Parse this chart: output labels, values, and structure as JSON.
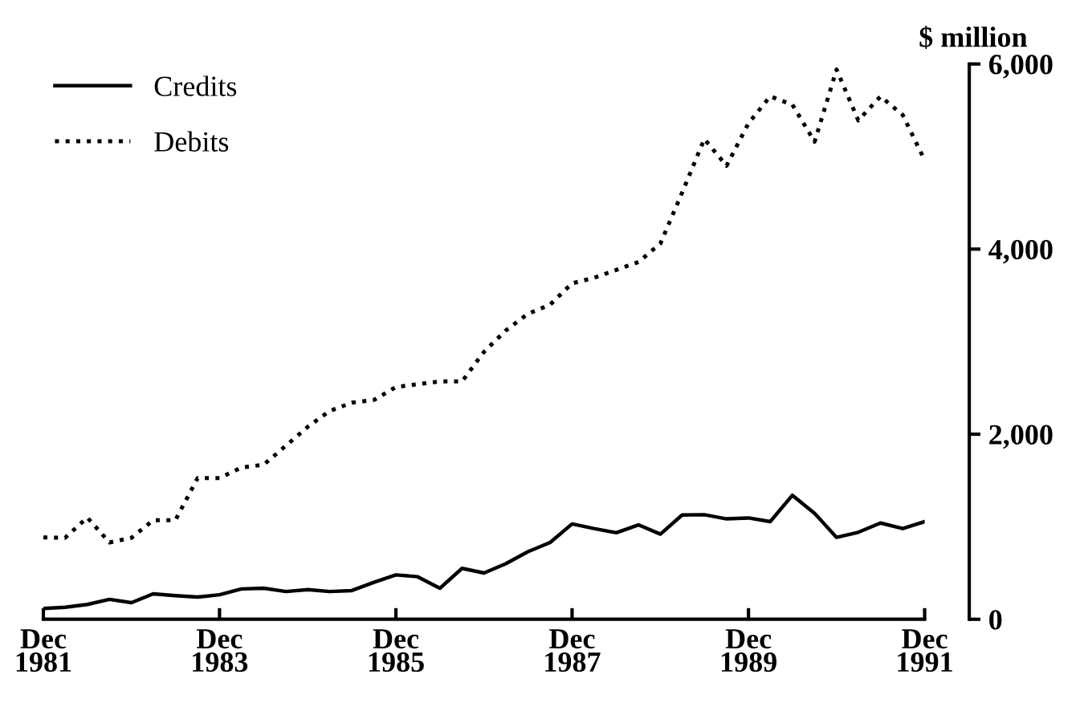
{
  "chart_data": {
    "type": "line",
    "ylabel": "$ million",
    "x": [
      "1981-12",
      "1982-03",
      "1982-06",
      "1982-09",
      "1982-12",
      "1983-03",
      "1983-06",
      "1983-09",
      "1983-12",
      "1984-03",
      "1984-06",
      "1984-09",
      "1984-12",
      "1985-03",
      "1985-06",
      "1985-09",
      "1985-12",
      "1986-03",
      "1986-06",
      "1986-09",
      "1986-12",
      "1987-03",
      "1987-06",
      "1987-09",
      "1987-12",
      "1988-03",
      "1988-06",
      "1988-09",
      "1988-12",
      "1989-03",
      "1989-06",
      "1989-09",
      "1989-12",
      "1990-03",
      "1990-06",
      "1990-09",
      "1990-12",
      "1991-03",
      "1991-06",
      "1991-09",
      "1991-12"
    ],
    "series": [
      {
        "name": "Credits",
        "color": "#000000",
        "line_style": "solid",
        "values": [
          116,
          130,
          160,
          215,
          180,
          275,
          255,
          240,
          265,
          328,
          335,
          300,
          320,
          300,
          310,
          400,
          480,
          460,
          335,
          550,
          500,
          600,
          730,
          830,
          1030,
          980,
          935,
          1020,
          920,
          1127,
          1130,
          1085,
          1095,
          1055,
          1340,
          1145,
          885,
          940,
          1040,
          980,
          1055
        ]
      },
      {
        "name": "Debits",
        "color": "#000000",
        "line_style": "dotted",
        "values": [
          884,
          880,
          1100,
          830,
          880,
          1070,
          1070,
          1525,
          1525,
          1640,
          1670,
          1875,
          2080,
          2250,
          2340,
          2370,
          2510,
          2540,
          2570,
          2570,
          2890,
          3120,
          3300,
          3400,
          3630,
          3690,
          3775,
          3860,
          4060,
          4610,
          5190,
          4900,
          5360,
          5650,
          5560,
          5160,
          5940,
          5390,
          5650,
          5450,
          4960
        ]
      }
    ],
    "xlim": [
      "1981-12",
      "1991-12"
    ],
    "xticks": [
      {
        "value": "1981-12",
        "label": "Dec\n1981"
      },
      {
        "value": "1983-12",
        "label": "Dec\n1983"
      },
      {
        "value": "1985-12",
        "label": "Dec\n1985"
      },
      {
        "value": "1987-12",
        "label": "Dec\n1987"
      },
      {
        "value": "1989-12",
        "label": "Dec\n1989"
      },
      {
        "value": "1991-12",
        "label": "Dec\n1991"
      }
    ],
    "ylim": [
      0,
      6000
    ],
    "yticks": [
      {
        "value": 0,
        "label": "0"
      },
      {
        "value": 2000,
        "label": "2,000"
      },
      {
        "value": 4000,
        "label": "4,000"
      },
      {
        "value": 6000,
        "label": "6,000"
      }
    ],
    "grid": false,
    "legend": "top left",
    "marker": "none"
  }
}
